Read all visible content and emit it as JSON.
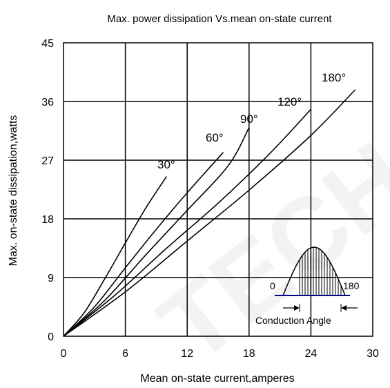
{
  "chart_data": {
    "type": "line",
    "title": "Max. power dissipation Vs.mean on-state current",
    "xlabel": "Mean on-state current,amperes",
    "ylabel": "Max. on-state dissipation,watts",
    "xlim": [
      0,
      30
    ],
    "ylim": [
      0,
      45
    ],
    "xticks": [
      "0",
      "6",
      "12",
      "18",
      "24",
      "30"
    ],
    "yticks": [
      "0",
      "9",
      "18",
      "27",
      "36",
      "45"
    ],
    "grid": true,
    "series": [
      {
        "name": "30°",
        "x": [
          0,
          2,
          4,
          6,
          8,
          10
        ],
        "y": [
          0,
          3.6,
          8.8,
          14.3,
          19.7,
          24.5
        ]
      },
      {
        "name": "60°",
        "x": [
          0,
          3,
          6,
          9,
          12,
          15.5
        ],
        "y": [
          0,
          4.5,
          10.5,
          16.4,
          22.0,
          28.2
        ]
      },
      {
        "name": "90°",
        "x": [
          0,
          4,
          8,
          12,
          16,
          18
        ],
        "y": [
          0,
          5.5,
          12.5,
          19.3,
          26.2,
          32.0
        ]
      },
      {
        "name": "120°",
        "x": [
          0,
          5,
          10,
          15,
          20,
          24
        ],
        "y": [
          0,
          6.3,
          13.5,
          20.4,
          28.0,
          34.8
        ]
      },
      {
        "name": "180°",
        "x": [
          0,
          6,
          12,
          18,
          24,
          28.3
        ],
        "y": [
          0,
          6.8,
          14.6,
          22.4,
          30.8,
          37.8
        ]
      }
    ],
    "inset": {
      "start_label": "0",
      "end_label": "180",
      "caption": "Conduction Angle"
    },
    "watermark": "TECH"
  }
}
